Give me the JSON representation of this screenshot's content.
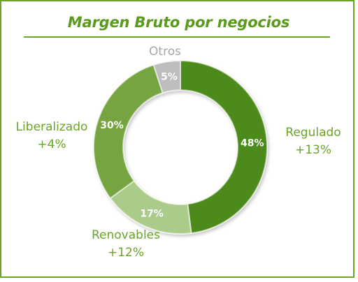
{
  "title": "Margen Bruto por negocios",
  "colors": {
    "accent": "#6aa527",
    "title": "#5a9a1e",
    "label_green": "#6aa527",
    "label_gray": "#a6a6a6",
    "slice_text": "#ffffff"
  },
  "chart_data": {
    "type": "pie",
    "variant": "donut",
    "title": "Margen Bruto por negocios",
    "slices": [
      {
        "name": "Regulado",
        "value": 48,
        "value_label": "48%",
        "change": "+13%",
        "color": "#4e8a1c",
        "label_color": "#6aa527"
      },
      {
        "name": "Renovables",
        "value": 17,
        "value_label": "17%",
        "change": "+12%",
        "color": "#aacb8a",
        "label_color": "#6aa527"
      },
      {
        "name": "Liberalizado",
        "value": 30,
        "value_label": "30%",
        "change": "+4%",
        "color": "#74a43f",
        "label_color": "#6aa527"
      },
      {
        "name": "Otros",
        "value": 5,
        "value_label": "5%",
        "change": "",
        "color": "#bdbdbd",
        "label_color": "#a6a6a6"
      }
    ]
  }
}
